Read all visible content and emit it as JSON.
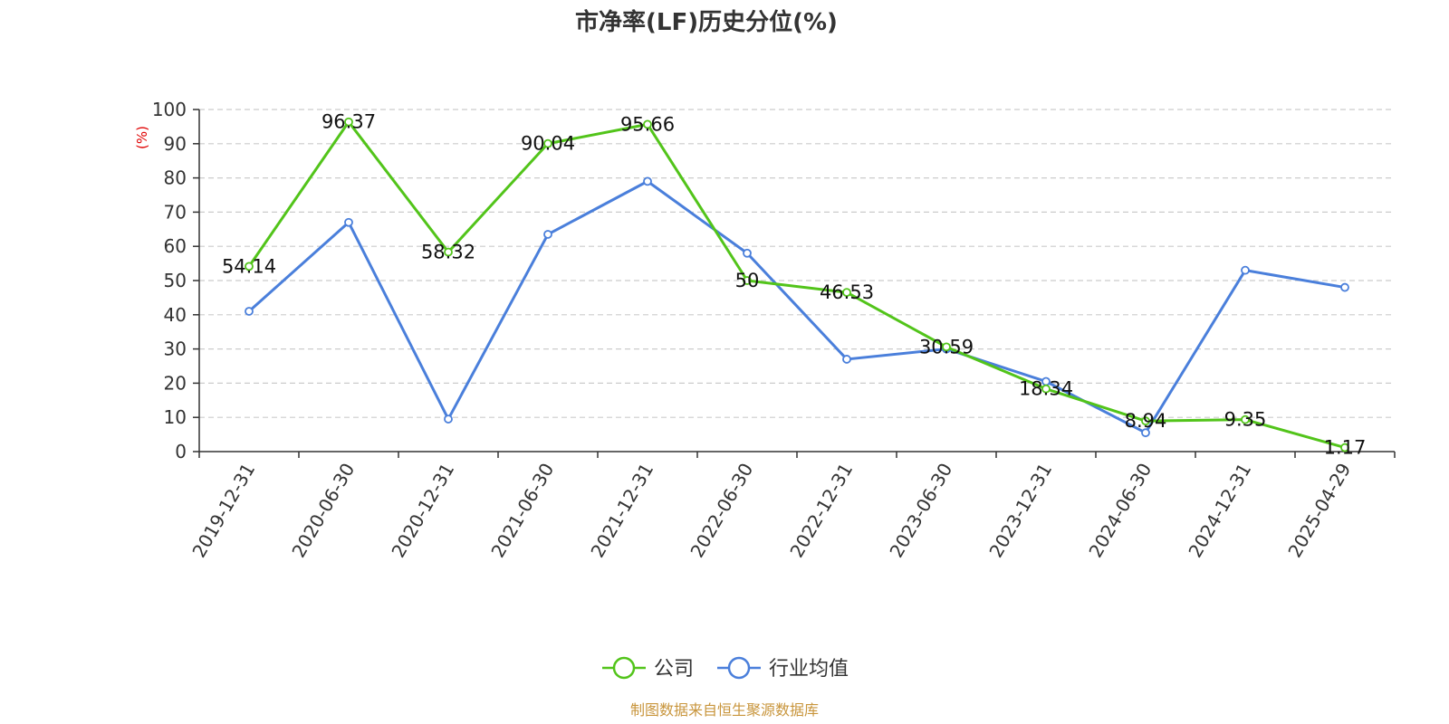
{
  "chart_data": {
    "type": "line",
    "title": "市净率(LF)历史分位(%)",
    "ylabel": "(%)",
    "xlabel": "",
    "ylim": [
      0,
      100
    ],
    "yticks": [
      0,
      10,
      20,
      30,
      40,
      50,
      60,
      70,
      80,
      90,
      100
    ],
    "grid": true,
    "legend_position": "bottom",
    "categories": [
      "2019-12-31",
      "2020-06-30",
      "2020-12-31",
      "2021-06-30",
      "2021-12-31",
      "2022-06-30",
      "2022-12-31",
      "2023-06-30",
      "2023-12-31",
      "2024-06-30",
      "2024-12-31",
      "2025-04-29"
    ],
    "series": [
      {
        "name": "公司",
        "color": "#52c41a",
        "values": [
          54.14,
          96.37,
          58.32,
          90.04,
          95.66,
          50,
          46.53,
          30.59,
          18.34,
          8.94,
          9.35,
          1.17
        ],
        "labels": [
          "54.14",
          "96.37",
          "58.32",
          "90.04",
          "95.66",
          "50",
          "46.53",
          "30.59",
          "18.34",
          "8.94",
          "9.35",
          "1.17"
        ]
      },
      {
        "name": "行业均值",
        "color": "#4a7fdb",
        "values": [
          41,
          67,
          9.5,
          63.5,
          79,
          58,
          27,
          30,
          20.5,
          5.5,
          53,
          48
        ]
      }
    ],
    "source": "制图数据来自恒生聚源数据库"
  }
}
